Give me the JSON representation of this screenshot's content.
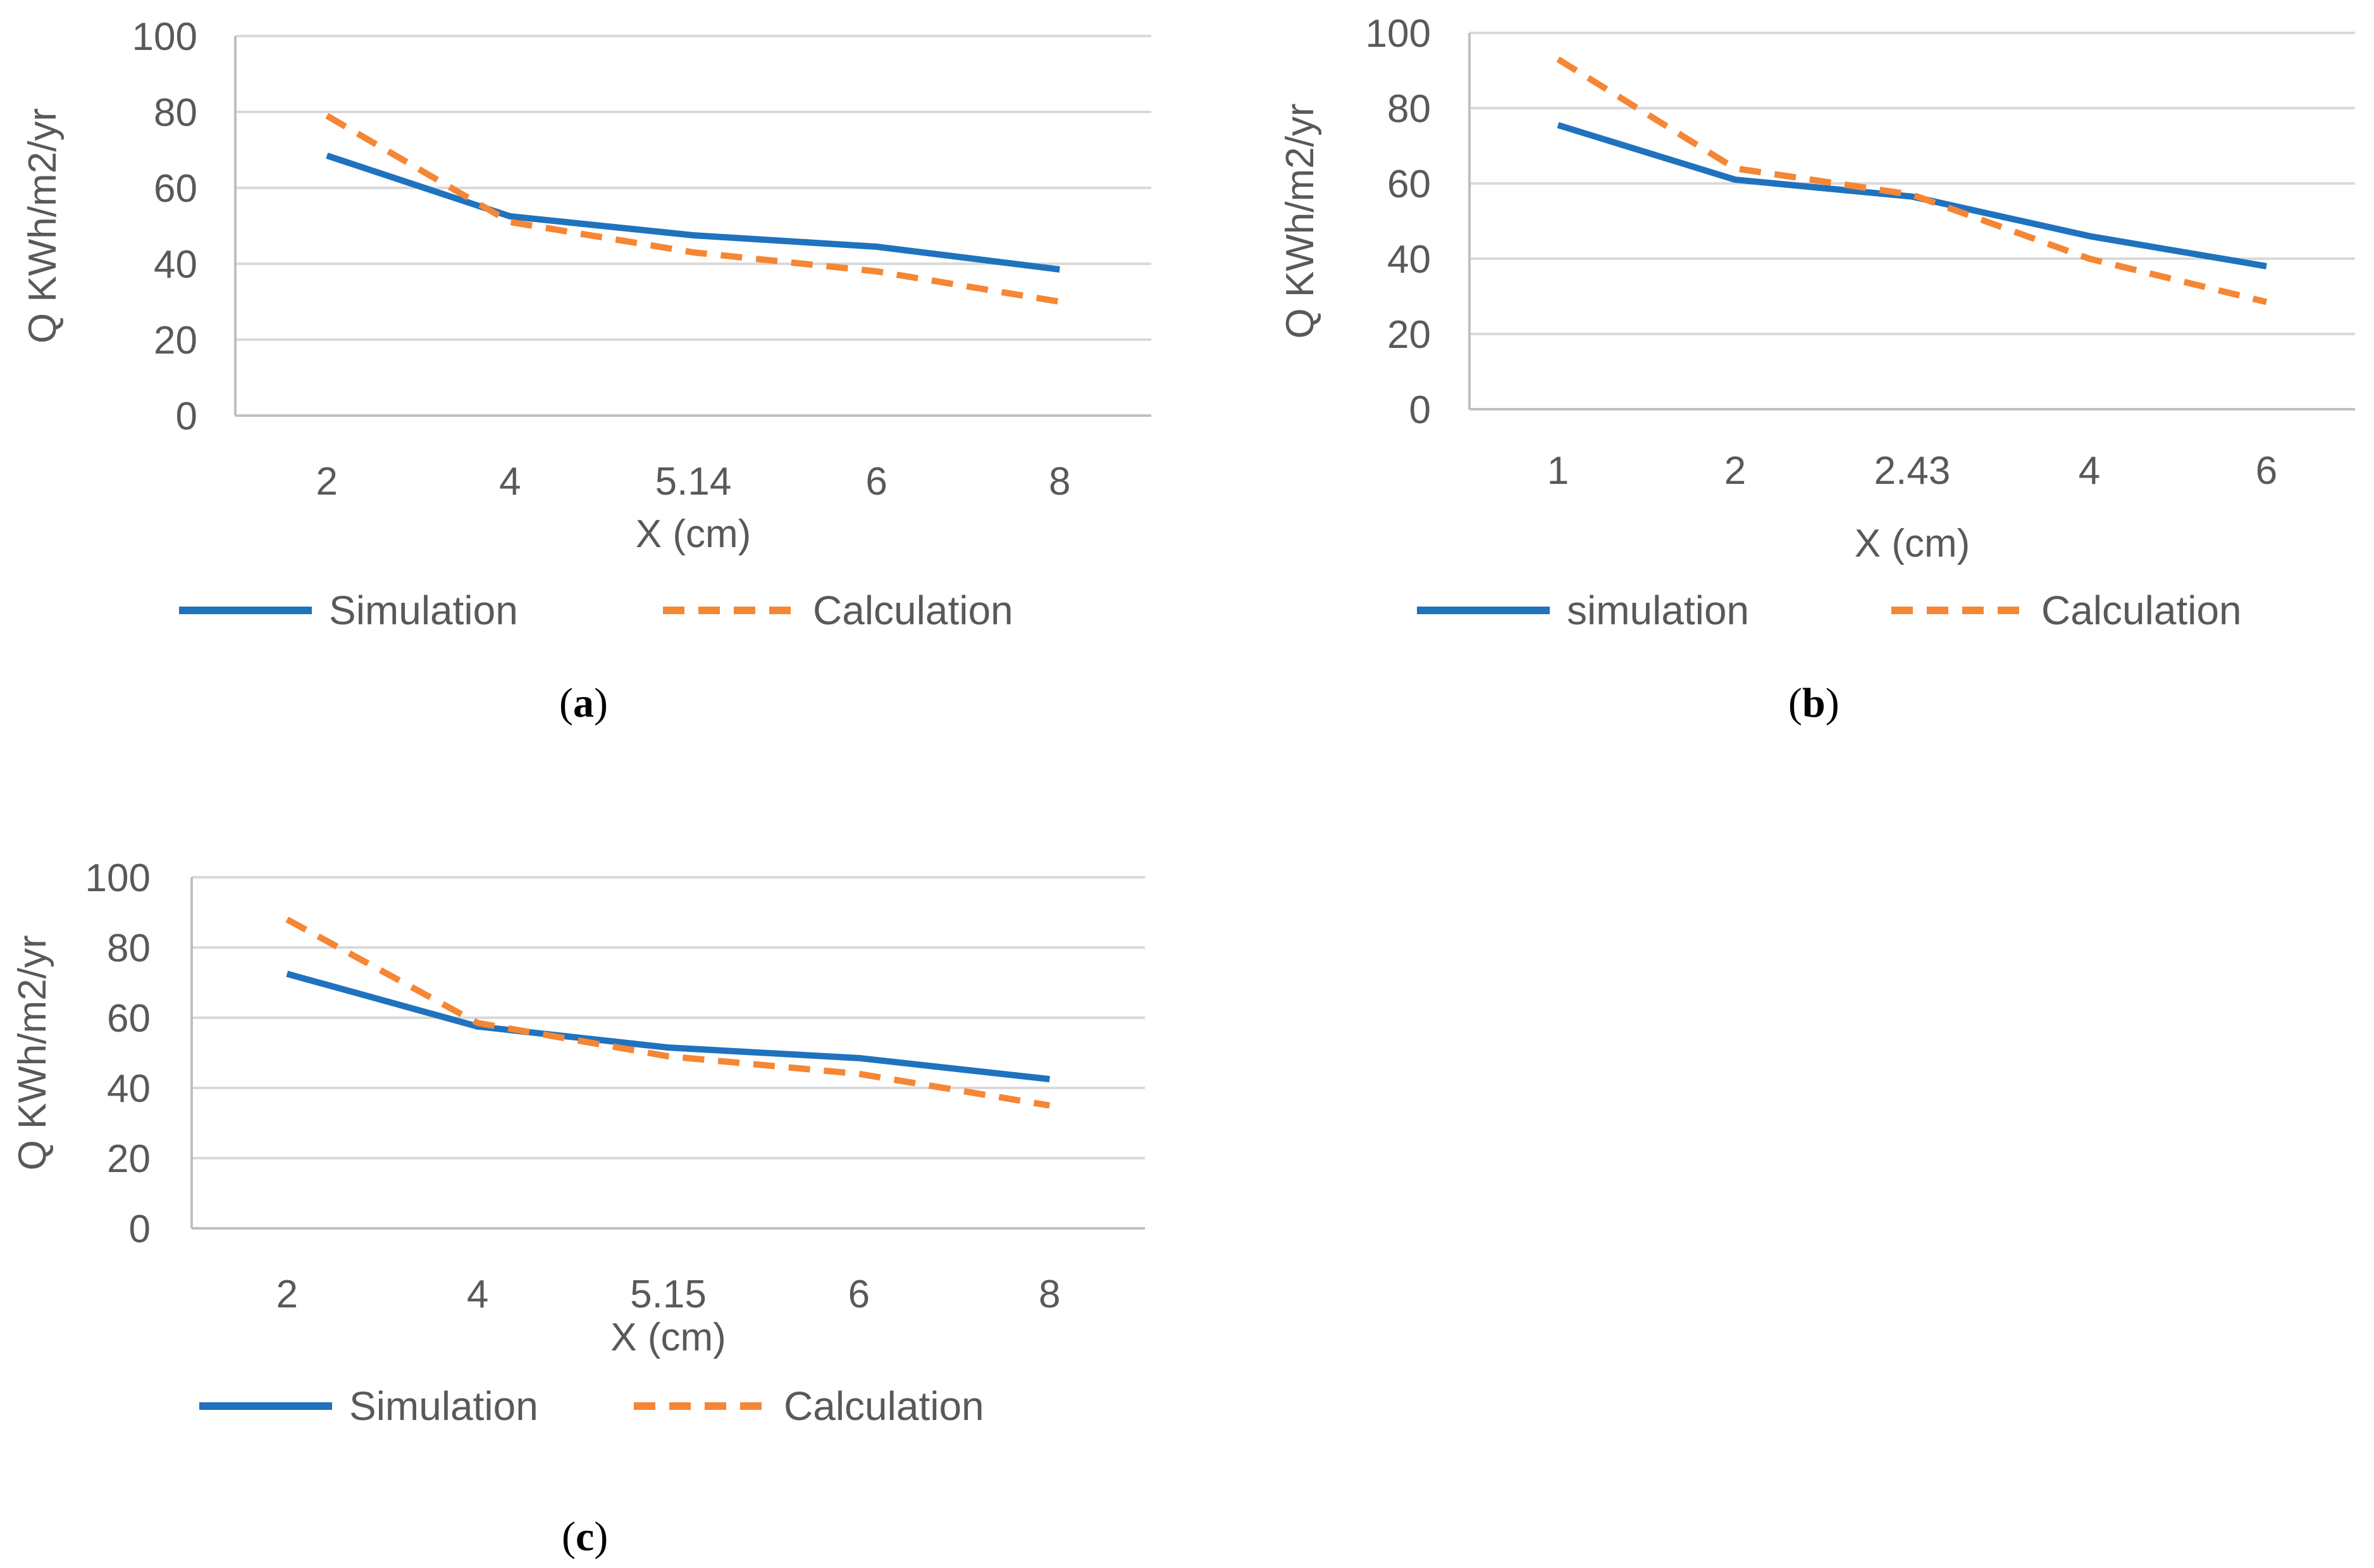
{
  "figure": {
    "captions": [
      {
        "open": "(",
        "letter": "a",
        "close": ")"
      },
      {
        "open": "(",
        "letter": "b",
        "close": ")"
      },
      {
        "open": "(",
        "letter": "c",
        "close": ")"
      }
    ]
  },
  "colors": {
    "simulation": "#1f72be",
    "calculation": "#f58634",
    "grid": "#d9d9d9",
    "axis_line": "#bfbfbf",
    "text": "#595959"
  },
  "chart_data": [
    {
      "type": "line",
      "panel": "a",
      "categories": [
        "2",
        "4",
        "5.14",
        "6",
        "8"
      ],
      "series": [
        {
          "name": "Simulation",
          "style": "solid",
          "values": [
            68.5,
            52.5,
            47.5,
            44.5,
            38.5
          ]
        },
        {
          "name": "Calculation",
          "style": "dashed",
          "values": [
            79,
            51,
            43,
            38,
            30
          ]
        }
      ],
      "xlabel": "X (cm)",
      "ylabel": "Q KWh/m2/yr",
      "ylim": [
        0,
        100
      ],
      "yticks": [
        "0",
        "20",
        "40",
        "60",
        "80",
        "100"
      ],
      "grid": true,
      "legend": "bottom"
    },
    {
      "type": "line",
      "panel": "b",
      "categories": [
        "1",
        "2",
        "2.43",
        "4",
        "6"
      ],
      "series": [
        {
          "name": "simulation",
          "style": "solid",
          "values": [
            75.5,
            61,
            56.5,
            46,
            38
          ]
        },
        {
          "name": "Calculation",
          "style": "dashed",
          "values": [
            93,
            64,
            57,
            40,
            28.5
          ]
        }
      ],
      "xlabel": "X (cm)",
      "ylabel": "Q KWh/m2/yr",
      "ylim": [
        0,
        100
      ],
      "yticks": [
        "0",
        "20",
        "40",
        "60",
        "80",
        "100"
      ],
      "grid": true,
      "legend": "bottom"
    },
    {
      "type": "line",
      "panel": "c",
      "categories": [
        "2",
        "4",
        "5.15",
        "6",
        "8"
      ],
      "series": [
        {
          "name": "Simulation",
          "style": "solid",
          "values": [
            72.5,
            57.5,
            51.5,
            48.5,
            42.5
          ]
        },
        {
          "name": "Calculation",
          "style": "dashed",
          "values": [
            88,
            58.5,
            49,
            44,
            35
          ]
        }
      ],
      "xlabel": "X (cm)",
      "ylabel": "Q KWh/m2/yr",
      "ylim": [
        0,
        100
      ],
      "yticks": [
        "0",
        "20",
        "40",
        "60",
        "80",
        "100"
      ],
      "grid": true,
      "legend": "bottom"
    }
  ]
}
